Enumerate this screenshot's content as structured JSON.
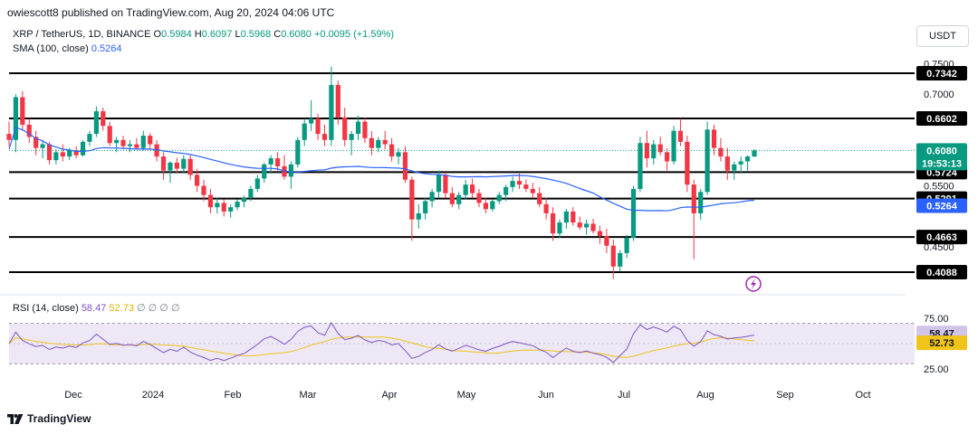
{
  "header": {
    "published": "owiescott8 published on TradingView.com, Aug 20, 2024 04:06 UTC"
  },
  "legend": {
    "symbol": "XRP / TetherUS, 1D, BINANCE",
    "open_label": "O",
    "open": "0.5984",
    "high_label": "H",
    "high": "0.6097",
    "low_label": "L",
    "low": "0.5968",
    "close_label": "C",
    "close": "0.6080",
    "change": "+0.0095 (+1.59%)",
    "sma_label": "SMA (100, close)",
    "sma_value": "0.5264",
    "rsi_label": "RSI (14, close)",
    "rsi_value": "58.47",
    "rsi_ma_value": "52.73",
    "placeholders": "∅ ∅ ∅ ∅"
  },
  "toolbar": {
    "currency": "USDT"
  },
  "brand": {
    "name": "TradingView"
  },
  "colors": {
    "up": "#089981",
    "down": "#f23645",
    "sma": "#2962ff",
    "rsi": "#7e57c2",
    "rsi_ma": "#f0c419",
    "rsi_band": "#ede7f6"
  },
  "chart_data": [
    {
      "type": "candlestick",
      "title": "XRP / TetherUS, 1D, BINANCE",
      "x_tick_labels": [
        "Dec",
        "2024",
        "Feb",
        "Mar",
        "Apr",
        "May",
        "Jun",
        "Jul",
        "Aug",
        "Sep",
        "Oct"
      ],
      "y_tick_labels": [
        "0.7500",
        "0.7000",
        "0.5500",
        "0.4500"
      ],
      "last_price": "0.6080",
      "countdown": "19:53:13",
      "horizontal_levels": [
        {
          "value": 0.7342,
          "label": "0.7342"
        },
        {
          "value": 0.6602,
          "label": "0.6602"
        },
        {
          "value": 0.5724,
          "label": "0.5724"
        },
        {
          "value": 0.5291,
          "label": "0.5291"
        },
        {
          "value": 0.4663,
          "label": "0.4663"
        },
        {
          "value": 0.4088,
          "label": "0.4088"
        }
      ],
      "sma": {
        "name": "SMA (100, close)",
        "last": 0.5264,
        "label": "0.5264"
      },
      "candles": [
        [
          0.635,
          0.655,
          0.615,
          0.625
        ],
        [
          0.625,
          0.7,
          0.605,
          0.695
        ],
        [
          0.695,
          0.705,
          0.64,
          0.65
        ],
        [
          0.65,
          0.66,
          0.62,
          0.63
        ],
        [
          0.63,
          0.64,
          0.6,
          0.612
        ],
        [
          0.612,
          0.625,
          0.595,
          0.618
        ],
        [
          0.618,
          0.622,
          0.585,
          0.592
        ],
        [
          0.592,
          0.61,
          0.585,
          0.605
        ],
        [
          0.605,
          0.618,
          0.59,
          0.598
        ],
        [
          0.598,
          0.612,
          0.592,
          0.608
        ],
        [
          0.608,
          0.615,
          0.595,
          0.6
        ],
        [
          0.6,
          0.625,
          0.598,
          0.622
        ],
        [
          0.622,
          0.64,
          0.615,
          0.635
        ],
        [
          0.635,
          0.68,
          0.63,
          0.672
        ],
        [
          0.672,
          0.678,
          0.64,
          0.648
        ],
        [
          0.648,
          0.655,
          0.615,
          0.62
        ],
        [
          0.62,
          0.63,
          0.605,
          0.625
        ],
        [
          0.625,
          0.632,
          0.61,
          0.615
        ],
        [
          0.615,
          0.625,
          0.605,
          0.618
        ],
        [
          0.618,
          0.628,
          0.61,
          0.612
        ],
        [
          0.612,
          0.64,
          0.608,
          0.632
        ],
        [
          0.632,
          0.636,
          0.61,
          0.618
        ],
        [
          0.618,
          0.625,
          0.59,
          0.598
        ],
        [
          0.598,
          0.605,
          0.56,
          0.575
        ],
        [
          0.575,
          0.59,
          0.555,
          0.588
        ],
        [
          0.588,
          0.596,
          0.57,
          0.578
        ],
        [
          0.578,
          0.6,
          0.572,
          0.594
        ],
        [
          0.594,
          0.6,
          0.56,
          0.568
        ],
        [
          0.568,
          0.578,
          0.54,
          0.55
        ],
        [
          0.55,
          0.56,
          0.525,
          0.535
        ],
        [
          0.535,
          0.545,
          0.505,
          0.515
        ],
        [
          0.515,
          0.53,
          0.505,
          0.522
        ],
        [
          0.522,
          0.528,
          0.5,
          0.508
        ],
        [
          0.508,
          0.52,
          0.498,
          0.515
        ],
        [
          0.515,
          0.528,
          0.51,
          0.524
        ],
        [
          0.524,
          0.534,
          0.515,
          0.53
        ],
        [
          0.53,
          0.55,
          0.525,
          0.545
        ],
        [
          0.545,
          0.568,
          0.54,
          0.562
        ],
        [
          0.562,
          0.588,
          0.555,
          0.585
        ],
        [
          0.585,
          0.6,
          0.57,
          0.595
        ],
        [
          0.595,
          0.605,
          0.575,
          0.582
        ],
        [
          0.582,
          0.6,
          0.56,
          0.565
        ],
        [
          0.565,
          0.59,
          0.545,
          0.585
        ],
        [
          0.585,
          0.63,
          0.58,
          0.625
        ],
        [
          0.625,
          0.66,
          0.615,
          0.652
        ],
        [
          0.652,
          0.69,
          0.64,
          0.66
        ],
        [
          0.66,
          0.668,
          0.625,
          0.635
        ],
        [
          0.635,
          0.65,
          0.615,
          0.625
        ],
        [
          0.625,
          0.745,
          0.615,
          0.715
        ],
        [
          0.715,
          0.722,
          0.65,
          0.662
        ],
        [
          0.662,
          0.678,
          0.615,
          0.625
        ],
        [
          0.625,
          0.64,
          0.6,
          0.635
        ],
        [
          0.635,
          0.665,
          0.625,
          0.655
        ],
        [
          0.655,
          0.662,
          0.62,
          0.628
        ],
        [
          0.628,
          0.64,
          0.6,
          0.612
        ],
        [
          0.612,
          0.63,
          0.605,
          0.625
        ],
        [
          0.625,
          0.64,
          0.61,
          0.618
        ],
        [
          0.618,
          0.628,
          0.59,
          0.598
        ],
        [
          0.598,
          0.612,
          0.585,
          0.605
        ],
        [
          0.605,
          0.615,
          0.555,
          0.56
        ],
        [
          0.56,
          0.565,
          0.46,
          0.495
        ],
        [
          0.495,
          0.52,
          0.48,
          0.505
        ],
        [
          0.505,
          0.53,
          0.495,
          0.525
        ],
        [
          0.525,
          0.545,
          0.515,
          0.54
        ],
        [
          0.54,
          0.575,
          0.53,
          0.568
        ],
        [
          0.568,
          0.572,
          0.53,
          0.538
        ],
        [
          0.538,
          0.548,
          0.515,
          0.52
        ],
        [
          0.52,
          0.54,
          0.512,
          0.535
        ],
        [
          0.535,
          0.56,
          0.528,
          0.552
        ],
        [
          0.552,
          0.562,
          0.53,
          0.538
        ],
        [
          0.538,
          0.545,
          0.515,
          0.522
        ],
        [
          0.522,
          0.53,
          0.505,
          0.512
        ],
        [
          0.512,
          0.528,
          0.508,
          0.525
        ],
        [
          0.525,
          0.54,
          0.52,
          0.535
        ],
        [
          0.535,
          0.552,
          0.525,
          0.548
        ],
        [
          0.548,
          0.565,
          0.54,
          0.558
        ],
        [
          0.558,
          0.57,
          0.545,
          0.552
        ],
        [
          0.552,
          0.56,
          0.54,
          0.545
        ],
        [
          0.545,
          0.555,
          0.53,
          0.538
        ],
        [
          0.538,
          0.548,
          0.515,
          0.52
        ],
        [
          0.52,
          0.53,
          0.495,
          0.505
        ],
        [
          0.505,
          0.515,
          0.46,
          0.472
        ],
        [
          0.472,
          0.495,
          0.465,
          0.49
        ],
        [
          0.49,
          0.512,
          0.48,
          0.508
        ],
        [
          0.508,
          0.515,
          0.485,
          0.49
        ],
        [
          0.49,
          0.5,
          0.478,
          0.482
        ],
        [
          0.482,
          0.495,
          0.47,
          0.488
        ],
        [
          0.488,
          0.496,
          0.472,
          0.476
        ],
        [
          0.476,
          0.485,
          0.455,
          0.468
        ],
        [
          0.468,
          0.48,
          0.44,
          0.452
        ],
        [
          0.452,
          0.462,
          0.398,
          0.418
        ],
        [
          0.418,
          0.445,
          0.41,
          0.44
        ],
        [
          0.44,
          0.47,
          0.432,
          0.465
        ],
        [
          0.465,
          0.55,
          0.46,
          0.545
        ],
        [
          0.545,
          0.63,
          0.54,
          0.62
        ],
        [
          0.62,
          0.64,
          0.58,
          0.595
        ],
        [
          0.595,
          0.625,
          0.585,
          0.618
        ],
        [
          0.618,
          0.63,
          0.6,
          0.605
        ],
        [
          0.605,
          0.612,
          0.575,
          0.59
        ],
        [
          0.59,
          0.648,
          0.585,
          0.64
        ],
        [
          0.64,
          0.66,
          0.615,
          0.622
        ],
        [
          0.622,
          0.632,
          0.54,
          0.552
        ],
        [
          0.552,
          0.56,
          0.43,
          0.505
        ],
        [
          0.505,
          0.545,
          0.495,
          0.54
        ],
        [
          0.54,
          0.655,
          0.535,
          0.642
        ],
        [
          0.642,
          0.65,
          0.6,
          0.612
        ],
        [
          0.612,
          0.628,
          0.59,
          0.598
        ],
        [
          0.598,
          0.612,
          0.56,
          0.575
        ],
        [
          0.575,
          0.59,
          0.56,
          0.585
        ],
        [
          0.585,
          0.598,
          0.57,
          0.59
        ],
        [
          0.59,
          0.6,
          0.575,
          0.598
        ],
        [
          0.598,
          0.61,
          0.597,
          0.608
        ]
      ]
    },
    {
      "type": "line",
      "title": "RSI (14, close)",
      "y_tick_labels": [
        "75.00",
        "25.00"
      ],
      "band": [
        30,
        70
      ],
      "series": [
        {
          "name": "RSI (14, close)",
          "last": 58.47,
          "label": "58.47"
        },
        {
          "name": "",
          "last": 52.73,
          "label": "52.73"
        }
      ]
    }
  ]
}
